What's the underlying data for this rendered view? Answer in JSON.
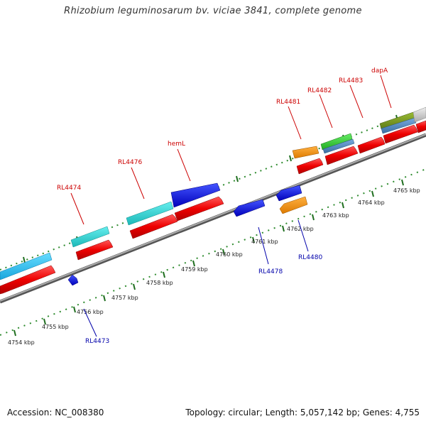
{
  "title": "Rhizobium leguminosarum bv. viciae 3841, complete genome",
  "footer": {
    "accession": "Accession: NC_008380",
    "summary": "Topology: circular; Length: 5,057,142 bp; Genes: 4,755"
  },
  "colors": {
    "forward_label": "#cc0000",
    "reverse_label": "#0000aa",
    "backbone": "#888888",
    "dots": "#2e8b2e"
  },
  "tick_labels": [
    "4754 kbp",
    "4755 kbp",
    "4756 kbp",
    "4757 kbp",
    "4758 kbp",
    "4759 kbp",
    "4760 kbp",
    "4761 kbp",
    "4762 kbp",
    "4763 kbp",
    "4764 kbp",
    "4765 kbp"
  ],
  "gene_labels": {
    "top": [
      "RL4474",
      "RL4476",
      "hemL",
      "RL4481",
      "RL4482",
      "RL4483",
      "dapA"
    ],
    "bottom": [
      "RL4473",
      "RL4478",
      "RL4480"
    ]
  }
}
